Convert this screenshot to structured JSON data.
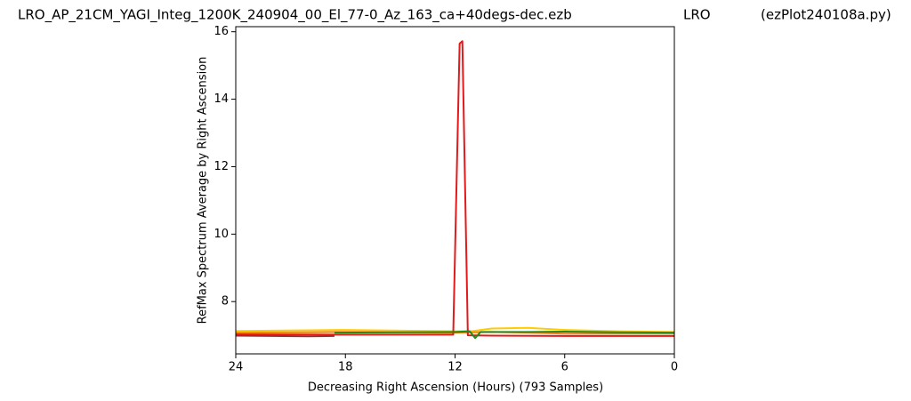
{
  "chart_data": {
    "type": "line",
    "title": [
      "LRO_AP_21CM_YAGI_Integ_1200K_240904_00_El_77-0_Az_163_ca+40degs-dec.ezb",
      "LRO",
      "(ezPlot240108a.py)"
    ],
    "x_label": "Decreasing Right Ascension (Hours) (793 Samples)",
    "y_label": "RefMax Spectrum Average by Right Ascension",
    "xlim": [
      24,
      0
    ],
    "xticks": [
      24,
      18,
      12,
      6,
      0
    ],
    "ylim": [
      6.45,
      16.15
    ],
    "yticks": [
      8,
      10,
      12,
      14,
      16
    ],
    "series": [
      {
        "color": "#ffcc00",
        "x": [
          24,
          20,
          18,
          15,
          12,
          11,
          10,
          8,
          6,
          3,
          0
        ],
        "values": [
          7.13,
          7.15,
          7.16,
          7.14,
          7.12,
          7.13,
          7.2,
          7.22,
          7.16,
          7.12,
          7.1
        ]
      },
      {
        "color": "#ff7f0e",
        "x": [
          24,
          20,
          18,
          15,
          12,
          10,
          8,
          6,
          3,
          0
        ],
        "values": [
          7.08,
          7.09,
          7.1,
          7.09,
          7.08,
          7.1,
          7.08,
          7.05,
          7.05,
          7.05
        ]
      },
      {
        "color": "#7a3b3b",
        "x": [
          24,
          22,
          20,
          18.6
        ],
        "values": [
          6.99,
          6.98,
          6.97,
          6.98
        ]
      },
      {
        "color": "#e31a1c",
        "x": [
          24,
          18,
          12.1,
          11.75,
          11.6,
          11.3,
          10,
          6,
          0
        ],
        "values": [
          7.03,
          7.02,
          7.02,
          15.65,
          15.72,
          7.0,
          6.99,
          6.98,
          6.98
        ]
      },
      {
        "color": "#1f8a1f",
        "x": [
          18.6,
          15,
          12,
          11.2,
          10.9,
          10.6,
          8,
          6,
          3,
          0
        ],
        "values": [
          7.08,
          7.09,
          7.1,
          7.12,
          6.92,
          7.1,
          7.1,
          7.11,
          7.09,
          7.08
        ]
      }
    ]
  }
}
